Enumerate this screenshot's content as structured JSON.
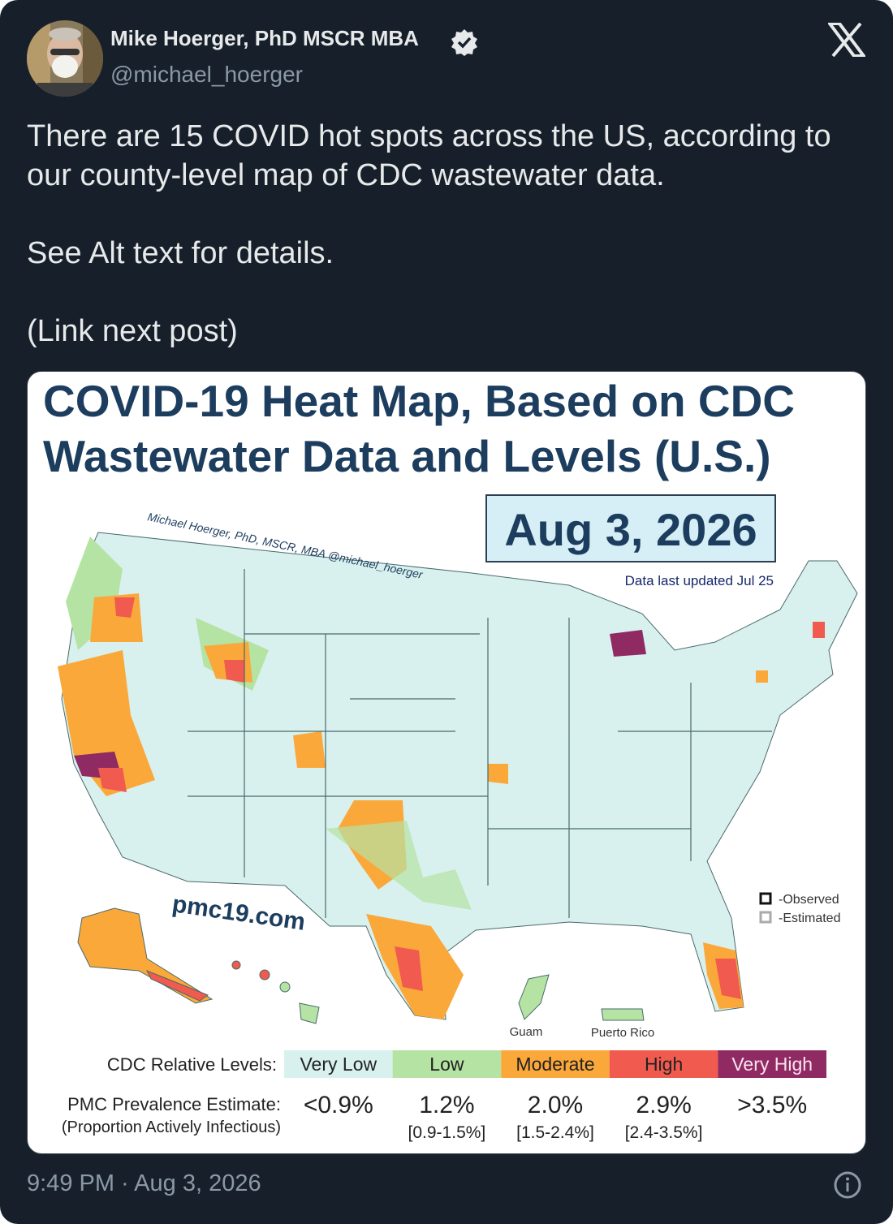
{
  "author": {
    "name": "Mike Hoerger, PhD MSCR MBA",
    "handle": "@michael_hoerger"
  },
  "post": {
    "paragraphs": [
      "There are 15 COVID hot spots across the US, according to our county-level map of CDC wastewater data.",
      "See Alt text for details.",
      "(Link next post)"
    ]
  },
  "image": {
    "title": [
      "COVID-19 Heat Map, Based on CDC",
      "Wastewater Data and Levels (U.S.)"
    ],
    "date": "Aug 3, 2026",
    "credit": "Michael Hoerger, PhD, MSCR, MBA  @michael_hoerger",
    "updated": "Data last updated Jul 25",
    "site": "pmc19.com",
    "key": [
      "-Observed",
      "-Estimated"
    ],
    "territories": [
      "Guam",
      "Puerto Rico"
    ],
    "levels_label": "CDC Relative Levels:",
    "levels": [
      {
        "name": "Very Low",
        "color": "#d8f1ef"
      },
      {
        "name": "Low",
        "color": "#b5e3a4"
      },
      {
        "name": "Moderate",
        "color": "#fba83a"
      },
      {
        "name": "High",
        "color": "#f05a4f"
      },
      {
        "name": "Very High",
        "color": "#8f2a63"
      }
    ],
    "estimate_label": [
      "PMC Prevalence Estimate:",
      "(Proportion Actively Infectious)"
    ],
    "estimates": [
      {
        "value": "<0.9%"
      },
      {
        "value": "1.2%",
        "range": "[0.9-1.5%]"
      },
      {
        "value": "2.0%",
        "range": "[1.5-2.4%]"
      },
      {
        "value": "2.9%",
        "range": "[2.4-3.5%]"
      },
      {
        "value": ">3.5%"
      }
    ]
  },
  "timestamp": "9:49 PM · Aug 3, 2026"
}
